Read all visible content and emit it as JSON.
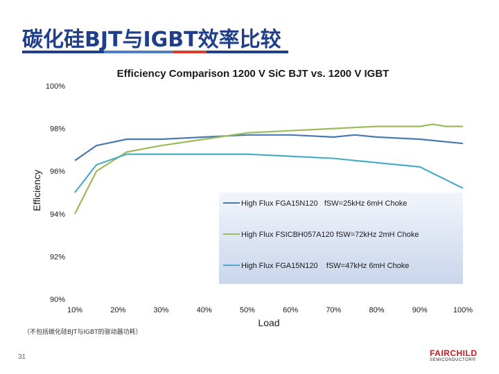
{
  "slide": {
    "title": "碳化硅BJT与IGBT效率比较",
    "footnote": "（不包括碳化硅BJT与IGBT的驱动器功耗）",
    "page_number": "31",
    "logo_top": "FAIRCHILD",
    "logo_bottom": "SEMICONDUCTOR®",
    "accent_colors": [
      "#1f3f8a",
      "#4f7ec2",
      "#e03a2b",
      "#1f3f8a"
    ]
  },
  "chart_data": {
    "type": "line",
    "title": "Efficiency Comparison 1200 V SiC BJT vs. 1200 V IGBT",
    "xlabel": "Load",
    "ylabel": "Efficiency",
    "xlim": [
      10,
      100
    ],
    "ylim": [
      90,
      100
    ],
    "x_ticks": [
      10,
      20,
      30,
      40,
      50,
      60,
      70,
      80,
      90,
      100
    ],
    "x_tick_labels": [
      "10%",
      "20%",
      "30%",
      "40%",
      "50%",
      "60%",
      "70%",
      "80%",
      "90%",
      "100%"
    ],
    "y_ticks": [
      90,
      92,
      94,
      96,
      98,
      100
    ],
    "y_tick_labels": [
      "90%",
      "92%",
      "94%",
      "96%",
      "98%",
      "100%"
    ],
    "grid": false,
    "legend_position": "center-right",
    "series": [
      {
        "name": "High Flux FGA15N120   fSW=25kHz 6mH Choke",
        "color": "#4a78b0",
        "x": [
          10,
          15,
          22,
          30,
          40,
          50,
          60,
          70,
          75,
          80,
          90,
          100
        ],
        "values": [
          96.5,
          97.2,
          97.5,
          97.5,
          97.6,
          97.7,
          97.7,
          97.6,
          97.7,
          97.6,
          97.5,
          97.3
        ]
      },
      {
        "name": "High Flux FSICBH057A120 fSW=72kHz 2mH Choke",
        "color": "#9bbb59",
        "x": [
          10,
          15,
          22,
          30,
          40,
          50,
          60,
          70,
          80,
          85,
          90,
          93,
          96,
          100
        ],
        "values": [
          94.0,
          96.0,
          96.9,
          97.2,
          97.5,
          97.8,
          97.9,
          98.0,
          98.1,
          98.1,
          98.1,
          98.2,
          98.1,
          98.1
        ]
      },
      {
        "name": "High Flux FGA15N120    fSW=47kHz 6mH Choke",
        "color": "#4bacc6",
        "x": [
          10,
          15,
          22,
          30,
          40,
          50,
          60,
          70,
          80,
          90,
          95,
          100
        ],
        "values": [
          95.0,
          96.3,
          96.8,
          96.8,
          96.8,
          96.8,
          96.7,
          96.6,
          96.4,
          96.2,
          95.7,
          95.2
        ]
      }
    ]
  }
}
